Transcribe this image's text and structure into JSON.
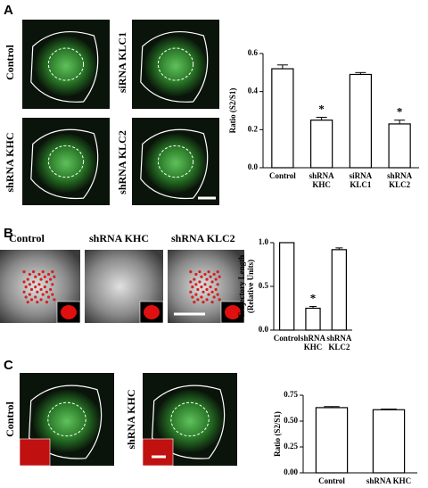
{
  "figure": {
    "panels": [
      {
        "letter": "A",
        "image_labels": [
          "Control",
          "siRNA KLC1",
          "shRNA KHC",
          "shRNA KLC2"
        ]
      },
      {
        "letter": "B",
        "image_labels": [
          "Control",
          "shRNA KHC",
          "shRNA KLC2"
        ]
      },
      {
        "letter": "C",
        "image_labels": [
          "Control",
          "shRNA KHC"
        ]
      }
    ]
  },
  "chart_data": [
    {
      "type": "bar",
      "y_label": "Ratio (S2/S1)",
      "categories": [
        "Control",
        "shRNA\nKHC",
        "siRNA\nKLC1",
        "shRNA\nKLC2"
      ],
      "values": [
        0.52,
        0.25,
        0.49,
        0.23
      ],
      "errors": [
        0.02,
        0.015,
        0.01,
        0.02
      ],
      "significance": [
        null,
        "*",
        null,
        "*"
      ],
      "color": "#ffffff",
      "ylim": [
        0,
        0.6
      ],
      "yticks": [
        {
          "value": 0,
          "label": "0.0"
        },
        0.2,
        0.4,
        0.6
      ]
    },
    {
      "type": "bar",
      "y_label": "Trajectory Length\n(Relative Units)",
      "categories": [
        "Control",
        "shRNA\nKHC",
        "shRNA\nKLC2"
      ],
      "values": [
        1.0,
        0.25,
        0.92
      ],
      "errors": [
        0,
        0.02,
        0.02
      ],
      "significance": [
        null,
        "*",
        null
      ],
      "color": "#ffffff",
      "ylim": [
        0,
        1.0
      ],
      "yticks": [
        {
          "value": 0,
          "label": "0.0"
        },
        0.5,
        {
          "value": 1,
          "label": "1.0"
        }
      ]
    },
    {
      "type": "bar",
      "y_label": "Ratio (S2/S1)",
      "categories": [
        "Control",
        "shRNA KHC"
      ],
      "values": [
        0.63,
        0.61
      ],
      "errors": [
        0.01,
        0.006
      ],
      "significance": [
        null,
        null
      ],
      "color": "#ffffff",
      "ylim": [
        0,
        0.75
      ],
      "yticks": [
        {
          "value": 0,
          "label": "0.00"
        },
        0.25,
        {
          "value": 0.5,
          "label": "0.50"
        },
        0.75
      ]
    }
  ]
}
